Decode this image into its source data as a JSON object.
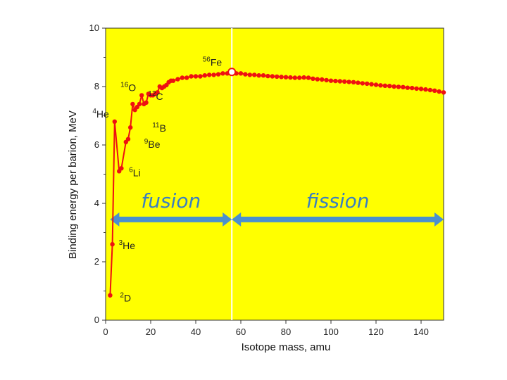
{
  "chart_data": {
    "type": "line",
    "xlabel": "Isotope mass, amu",
    "ylabel": "Binding energy per barion, MeV",
    "xlim": [
      0,
      150
    ],
    "ylim": [
      0,
      10
    ],
    "x_ticks": [
      0,
      20,
      40,
      60,
      80,
      100,
      120,
      140
    ],
    "y_ticks": [
      0,
      2,
      4,
      6,
      8,
      10
    ],
    "background_color": "#ffff00",
    "series_color": "#ee1111",
    "arrow_color": "#4a90d0",
    "divider_x": 56,
    "grid": false,
    "series": [
      {
        "points": [
          [
            2,
            0.85
          ],
          [
            3,
            2.6
          ],
          [
            4,
            6.8
          ],
          [
            6,
            5.1
          ],
          [
            7,
            5.2
          ],
          [
            9,
            6.1
          ],
          [
            10,
            6.2
          ],
          [
            11,
            6.6
          ],
          [
            12,
            7.4
          ],
          [
            13,
            7.2
          ],
          [
            14,
            7.3
          ],
          [
            15,
            7.4
          ],
          [
            16,
            7.7
          ],
          [
            17,
            7.4
          ],
          [
            18,
            7.45
          ],
          [
            19,
            7.75
          ],
          [
            20,
            7.7
          ],
          [
            21,
            7.7
          ],
          [
            22,
            7.75
          ],
          [
            23,
            7.8
          ],
          [
            24,
            8.0
          ],
          [
            25,
            7.95
          ],
          [
            26,
            8.0
          ],
          [
            27,
            8.05
          ],
          [
            28,
            8.15
          ],
          [
            29,
            8.2
          ],
          [
            30,
            8.2
          ],
          [
            32,
            8.25
          ],
          [
            34,
            8.3
          ],
          [
            36,
            8.3
          ],
          [
            38,
            8.35
          ],
          [
            40,
            8.35
          ],
          [
            42,
            8.35
          ],
          [
            44,
            8.38
          ],
          [
            46,
            8.4
          ],
          [
            48,
            8.4
          ],
          [
            50,
            8.42
          ],
          [
            52,
            8.45
          ],
          [
            54,
            8.45
          ],
          [
            56,
            8.5
          ],
          [
            58,
            8.45
          ],
          [
            60,
            8.45
          ],
          [
            62,
            8.42
          ],
          [
            64,
            8.4
          ],
          [
            66,
            8.4
          ],
          [
            68,
            8.38
          ],
          [
            70,
            8.38
          ],
          [
            72,
            8.36
          ],
          [
            74,
            8.35
          ],
          [
            76,
            8.34
          ],
          [
            78,
            8.33
          ],
          [
            80,
            8.32
          ],
          [
            82,
            8.31
          ],
          [
            84,
            8.3
          ],
          [
            86,
            8.3
          ],
          [
            88,
            8.31
          ],
          [
            90,
            8.3
          ],
          [
            92,
            8.27
          ],
          [
            94,
            8.25
          ],
          [
            96,
            8.24
          ],
          [
            98,
            8.22
          ],
          [
            100,
            8.2
          ],
          [
            102,
            8.19
          ],
          [
            104,
            8.18
          ],
          [
            106,
            8.17
          ],
          [
            108,
            8.16
          ],
          [
            110,
            8.15
          ],
          [
            112,
            8.13
          ],
          [
            114,
            8.11
          ],
          [
            116,
            8.1
          ],
          [
            118,
            8.08
          ],
          [
            120,
            8.06
          ],
          [
            122,
            8.04
          ],
          [
            124,
            8.03
          ],
          [
            126,
            8.02
          ],
          [
            128,
            8.0
          ],
          [
            130,
            7.99
          ],
          [
            132,
            7.98
          ],
          [
            134,
            7.96
          ],
          [
            136,
            7.95
          ],
          [
            138,
            7.93
          ],
          [
            140,
            7.92
          ],
          [
            142,
            7.9
          ],
          [
            144,
            7.88
          ],
          [
            146,
            7.86
          ],
          [
            148,
            7.83
          ],
          [
            150,
            7.8
          ]
        ]
      }
    ],
    "annotations": [
      {
        "mass": "2",
        "symbol": "D",
        "x": 2,
        "y": 0.85
      },
      {
        "mass": "3",
        "symbol": "He",
        "x": 3,
        "y": 2.6
      },
      {
        "mass": "6",
        "symbol": "Li",
        "x": 6,
        "y": 5.1
      },
      {
        "mass": "9",
        "symbol": "Be",
        "x": 9,
        "y": 6.1
      },
      {
        "mass": "11",
        "symbol": "B",
        "x": 11,
        "y": 6.6
      },
      {
        "mass": "4",
        "symbol": "He",
        "x": 4,
        "y": 6.8
      },
      {
        "mass": "12",
        "symbol": "C",
        "x": 12,
        "y": 7.4
      },
      {
        "mass": "16",
        "symbol": "O",
        "x": 16,
        "y": 7.7
      },
      {
        "mass": "56",
        "symbol": "Fe",
        "x": 56,
        "y": 8.5
      }
    ],
    "regions": [
      {
        "label": "fusion",
        "x_from": 2,
        "x_to": 56,
        "y": 3.45
      },
      {
        "label": "fission",
        "x_from": 56,
        "x_to": 150,
        "y": 3.45
      }
    ]
  }
}
